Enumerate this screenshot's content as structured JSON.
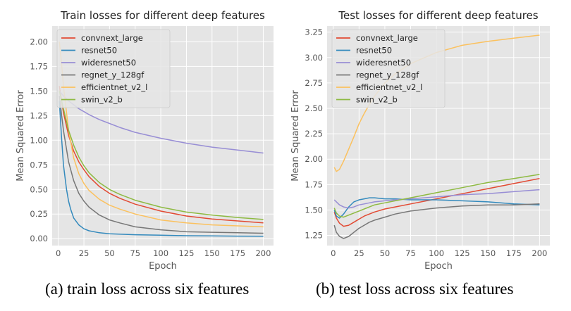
{
  "captions": {
    "a": "(a) train loss across six features",
    "b": "(b) test loss across six features"
  },
  "colors": {
    "background": "#E5E5E5",
    "grid": "#FFFFFF",
    "convnext_large": "#E24A33",
    "resnet50": "#348ABD",
    "wideresnet50": "#988ED5",
    "regnet_y_128gf": "#777777",
    "efficientnet_v2_l": "#FBC15E",
    "swin_v2_b": "#8EBA42"
  },
  "chart_data": [
    {
      "type": "line",
      "title": "Train losses for different deep features",
      "xlabel": "Epoch",
      "ylabel": "Mean Squared Error",
      "xlim": [
        -6,
        210
      ],
      "ylim": [
        -0.07,
        2.16
      ],
      "xticks": [
        0,
        25,
        50,
        75,
        100,
        125,
        150,
        175,
        200
      ],
      "yticks": [
        0.0,
        0.25,
        0.5,
        0.75,
        1.0,
        1.25,
        1.5,
        1.75,
        2.0
      ],
      "ytick_labels": [
        "0.00",
        "0.25",
        "0.50",
        "0.75",
        "1.00",
        "1.25",
        "1.50",
        "1.75",
        "2.00"
      ],
      "grid": true,
      "legend": "top-left",
      "series": [
        {
          "name": "convnext_large",
          "color": "#E24A33",
          "x": [
            1,
            5,
            10,
            15,
            20,
            25,
            30,
            40,
            50,
            60,
            75,
            100,
            125,
            150,
            175,
            200
          ],
          "y": [
            1.55,
            1.28,
            1.05,
            0.89,
            0.78,
            0.7,
            0.63,
            0.53,
            0.46,
            0.41,
            0.35,
            0.28,
            0.23,
            0.2,
            0.18,
            0.16
          ]
        },
        {
          "name": "resnet50",
          "color": "#348ABD",
          "x": [
            1,
            3,
            5,
            8,
            10,
            12,
            15,
            20,
            25,
            30,
            40,
            50,
            75,
            100,
            125,
            150,
            175,
            200
          ],
          "y": [
            1.4,
            1.05,
            0.75,
            0.5,
            0.38,
            0.3,
            0.21,
            0.14,
            0.1,
            0.08,
            0.06,
            0.05,
            0.04,
            0.035,
            0.03,
            0.028,
            0.026,
            0.025
          ]
        },
        {
          "name": "wideresnet50",
          "color": "#988ED5",
          "x": [
            1,
            5,
            10,
            15,
            20,
            25,
            30,
            40,
            50,
            60,
            75,
            100,
            125,
            150,
            175,
            200
          ],
          "y": [
            1.5,
            1.45,
            1.4,
            1.36,
            1.32,
            1.29,
            1.26,
            1.21,
            1.17,
            1.13,
            1.08,
            1.02,
            0.97,
            0.93,
            0.9,
            0.87
          ]
        },
        {
          "name": "regnet_y_128gf",
          "color": "#777777",
          "x": [
            1,
            5,
            10,
            15,
            20,
            25,
            30,
            40,
            50,
            60,
            75,
            100,
            125,
            150,
            175,
            200
          ],
          "y": [
            1.45,
            1.1,
            0.78,
            0.59,
            0.46,
            0.38,
            0.32,
            0.24,
            0.19,
            0.16,
            0.12,
            0.09,
            0.07,
            0.065,
            0.06,
            0.055
          ]
        },
        {
          "name": "efficientnet_v2_l",
          "color": "#FBC15E",
          "x": [
            1,
            3,
            5,
            10,
            15,
            20,
            25,
            30,
            40,
            50,
            60,
            75,
            100,
            125,
            150,
            175,
            200
          ],
          "y": [
            2.0,
            1.8,
            1.55,
            1.1,
            0.82,
            0.66,
            0.56,
            0.49,
            0.4,
            0.34,
            0.3,
            0.25,
            0.19,
            0.16,
            0.14,
            0.13,
            0.12
          ]
        },
        {
          "name": "swin_v2_b",
          "color": "#8EBA42",
          "x": [
            1,
            5,
            10,
            15,
            20,
            25,
            30,
            40,
            50,
            60,
            75,
            100,
            125,
            150,
            175,
            200
          ],
          "y": [
            1.5,
            1.32,
            1.1,
            0.95,
            0.83,
            0.74,
            0.67,
            0.57,
            0.5,
            0.45,
            0.39,
            0.32,
            0.27,
            0.24,
            0.215,
            0.195
          ]
        }
      ]
    },
    {
      "type": "line",
      "title": "Test losses for different deep features",
      "xlabel": "Epoch",
      "ylabel": "Mean Squared Error",
      "xlim": [
        -6,
        210
      ],
      "ylim": [
        1.15,
        3.31
      ],
      "xticks": [
        0,
        25,
        50,
        75,
        100,
        125,
        150,
        175,
        200
      ],
      "yticks": [
        1.25,
        1.5,
        1.75,
        2.0,
        2.25,
        2.5,
        2.75,
        3.0,
        3.25
      ],
      "ytick_labels": [
        "1.25",
        "1.50",
        "1.75",
        "2.00",
        "2.25",
        "2.50",
        "2.75",
        "3.00",
        "3.25"
      ],
      "grid": true,
      "legend": "top-left",
      "series": [
        {
          "name": "convnext_large",
          "color": "#E24A33",
          "x": [
            1,
            3,
            6,
            10,
            15,
            20,
            25,
            30,
            35,
            40,
            50,
            60,
            75,
            100,
            125,
            150,
            175,
            200
          ],
          "y": [
            1.48,
            1.42,
            1.37,
            1.34,
            1.35,
            1.38,
            1.41,
            1.44,
            1.46,
            1.48,
            1.51,
            1.53,
            1.56,
            1.61,
            1.66,
            1.71,
            1.76,
            1.81
          ]
        },
        {
          "name": "resnet50",
          "color": "#348ABD",
          "x": [
            1,
            3,
            6,
            10,
            15,
            20,
            25,
            30,
            35,
            40,
            50,
            60,
            75,
            100,
            125,
            150,
            175,
            200
          ],
          "y": [
            1.5,
            1.44,
            1.42,
            1.46,
            1.53,
            1.58,
            1.6,
            1.61,
            1.62,
            1.62,
            1.61,
            1.61,
            1.6,
            1.6,
            1.59,
            1.58,
            1.56,
            1.55
          ]
        },
        {
          "name": "wideresnet50",
          "color": "#988ED5",
          "x": [
            1,
            3,
            6,
            10,
            15,
            20,
            25,
            30,
            35,
            40,
            50,
            60,
            75,
            100,
            125,
            150,
            175,
            200
          ],
          "y": [
            1.6,
            1.58,
            1.55,
            1.53,
            1.52,
            1.53,
            1.55,
            1.56,
            1.57,
            1.58,
            1.59,
            1.6,
            1.61,
            1.63,
            1.65,
            1.66,
            1.68,
            1.7
          ]
        },
        {
          "name": "regnet_y_128gf",
          "color": "#777777",
          "x": [
            1,
            3,
            6,
            10,
            15,
            20,
            25,
            30,
            35,
            40,
            50,
            60,
            75,
            100,
            125,
            150,
            175,
            200
          ],
          "y": [
            1.35,
            1.28,
            1.24,
            1.22,
            1.24,
            1.28,
            1.32,
            1.35,
            1.38,
            1.4,
            1.43,
            1.46,
            1.49,
            1.52,
            1.54,
            1.55,
            1.55,
            1.56
          ]
        },
        {
          "name": "efficientnet_v2_l",
          "color": "#FBC15E",
          "x": [
            1,
            3,
            6,
            10,
            15,
            20,
            25,
            30,
            35,
            40,
            50,
            60,
            75,
            100,
            125,
            150,
            175,
            200
          ],
          "y": [
            1.92,
            1.88,
            1.9,
            1.98,
            2.1,
            2.22,
            2.35,
            2.45,
            2.54,
            2.62,
            2.75,
            2.84,
            2.94,
            3.05,
            3.12,
            3.16,
            3.19,
            3.22
          ]
        },
        {
          "name": "swin_v2_b",
          "color": "#8EBA42",
          "x": [
            1,
            3,
            6,
            10,
            15,
            20,
            25,
            30,
            35,
            40,
            50,
            60,
            75,
            100,
            125,
            150,
            175,
            200
          ],
          "y": [
            1.52,
            1.47,
            1.44,
            1.43,
            1.45,
            1.47,
            1.49,
            1.51,
            1.53,
            1.55,
            1.57,
            1.59,
            1.62,
            1.67,
            1.72,
            1.77,
            1.81,
            1.85
          ]
        }
      ]
    }
  ]
}
